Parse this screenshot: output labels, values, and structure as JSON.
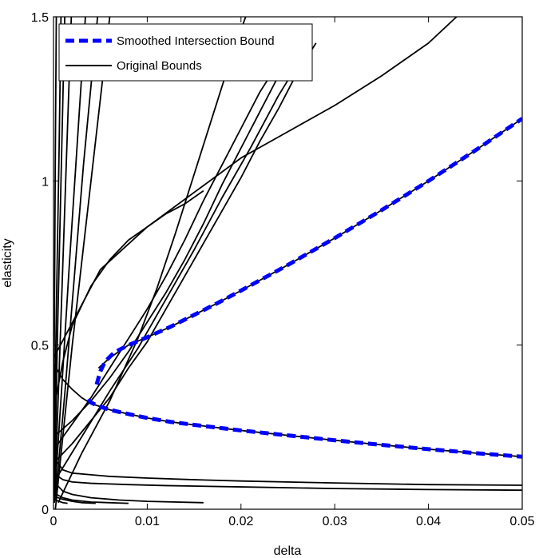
{
  "chart_data": {
    "type": "line",
    "xlabel": "delta",
    "ylabel": "elasticity",
    "xlim": [
      0,
      0.05
    ],
    "ylim": [
      0,
      1.5
    ],
    "x_ticks": [
      {
        "value": 0,
        "label": "0"
      },
      {
        "value": 0.01,
        "label": "0.01"
      },
      {
        "value": 0.02,
        "label": "0.02"
      },
      {
        "value": 0.03,
        "label": "0.03"
      },
      {
        "value": 0.04,
        "label": "0.04"
      },
      {
        "value": 0.05,
        "label": "0.05"
      }
    ],
    "y_ticks": [
      {
        "value": 0,
        "label": "0"
      },
      {
        "value": 0.5,
        "label": "0.5"
      },
      {
        "value": 1,
        "label": "1"
      },
      {
        "value": 1.5,
        "label": "1.5"
      }
    ],
    "grid": false,
    "legend_position": "top-left",
    "legend": [
      {
        "label": "Smoothed Intersection Bound",
        "style": "dashed",
        "color": "#0000ff"
      },
      {
        "label": "Original Bounds",
        "style": "solid",
        "color": "#000000"
      }
    ],
    "series": [
      {
        "name": "Smoothed Intersection Bound",
        "color": "#0000ff",
        "style": "dashed",
        "segments": [
          [
            [
              0.0046,
              0.38
            ],
            [
              0.005,
              0.42
            ],
            [
              0.0055,
              0.45
            ],
            [
              0.0065,
              0.478
            ],
            [
              0.008,
              0.5
            ],
            [
              0.01,
              0.524
            ],
            [
              0.0125,
              0.556
            ],
            [
              0.015,
              0.592
            ],
            [
              0.0175,
              0.628
            ],
            [
              0.02,
              0.666
            ],
            [
              0.025,
              0.744
            ],
            [
              0.03,
              0.826
            ],
            [
              0.035,
              0.911
            ],
            [
              0.04,
              1.0
            ],
            [
              0.045,
              1.093
            ],
            [
              0.05,
              1.19
            ]
          ],
          [
            [
              0.0037,
              0.335
            ],
            [
              0.004,
              0.325
            ],
            [
              0.0045,
              0.318
            ],
            [
              0.005,
              0.312
            ],
            [
              0.006,
              0.303
            ],
            [
              0.008,
              0.29
            ],
            [
              0.01,
              0.278
            ],
            [
              0.0125,
              0.266
            ],
            [
              0.015,
              0.257
            ],
            [
              0.02,
              0.24
            ],
            [
              0.025,
              0.225
            ],
            [
              0.03,
              0.21
            ],
            [
              0.035,
              0.196
            ],
            [
              0.04,
              0.183
            ],
            [
              0.045,
              0.171
            ],
            [
              0.05,
              0.16
            ]
          ]
        ]
      },
      {
        "name": "Original Bounds",
        "color": "#000000",
        "style": "solid",
        "segments": [
          [
            [
              0.0048,
              0.43
            ],
            [
              0.006,
              0.461
            ],
            [
              0.008,
              0.5
            ],
            [
              0.01,
              0.524
            ],
            [
              0.0125,
              0.556
            ],
            [
              0.015,
              0.592
            ],
            [
              0.0175,
              0.628
            ],
            [
              0.02,
              0.666
            ],
            [
              0.025,
              0.744
            ],
            [
              0.03,
              0.826
            ],
            [
              0.035,
              0.911
            ],
            [
              0.04,
              1.0
            ],
            [
              0.045,
              1.093
            ],
            [
              0.05,
              1.19
            ]
          ],
          [
            [
              0.0001,
              0.44
            ],
            [
              0.001,
              0.395
            ],
            [
              0.002,
              0.365
            ],
            [
              0.003,
              0.34
            ],
            [
              0.004,
              0.322
            ],
            [
              0.006,
              0.303
            ],
            [
              0.008,
              0.29
            ],
            [
              0.01,
              0.278
            ],
            [
              0.0125,
              0.266
            ],
            [
              0.015,
              0.257
            ],
            [
              0.02,
              0.24
            ],
            [
              0.025,
              0.225
            ],
            [
              0.03,
              0.21
            ],
            [
              0.035,
              0.196
            ],
            [
              0.04,
              0.183
            ],
            [
              0.045,
              0.171
            ],
            [
              0.05,
              0.16
            ]
          ],
          [
            [
              0.0,
              0.3
            ],
            [
              0.001,
              0.45
            ],
            [
              0.002,
              0.56
            ],
            [
              0.004,
              0.68
            ],
            [
              0.006,
              0.76
            ],
            [
              0.008,
              0.82
            ],
            [
              0.01,
              0.86
            ],
            [
              0.012,
              0.9
            ],
            [
              0.014,
              0.93
            ],
            [
              0.016,
              0.97
            ]
          ],
          [
            [
              0.0,
              0.46
            ],
            [
              0.005,
              0.73
            ],
            [
              0.01,
              0.86
            ],
            [
              0.015,
              0.965
            ],
            [
              0.02,
              1.07
            ],
            [
              0.025,
              1.15
            ],
            [
              0.03,
              1.23
            ],
            [
              0.035,
              1.32
            ],
            [
              0.04,
              1.42
            ],
            [
              0.043,
              1.5
            ]
          ],
          [
            [
              0.0,
              0.22
            ],
            [
              0.002,
              0.27
            ],
            [
              0.004,
              0.33
            ],
            [
              0.006,
              0.4
            ],
            [
              0.008,
              0.48
            ],
            [
              0.01,
              0.57
            ],
            [
              0.012,
              0.66
            ],
            [
              0.014,
              0.76
            ],
            [
              0.016,
              0.87
            ],
            [
              0.018,
              0.99
            ],
            [
              0.02,
              1.1
            ],
            [
              0.022,
              1.21
            ],
            [
              0.024,
              1.32
            ],
            [
              0.026,
              1.41
            ]
          ],
          [
            [
              0.0,
              0.18
            ],
            [
              0.002,
              0.26
            ],
            [
              0.004,
              0.34
            ],
            [
              0.006,
              0.43
            ],
            [
              0.008,
              0.52
            ],
            [
              0.01,
              0.61
            ],
            [
              0.012,
              0.71
            ],
            [
              0.014,
              0.82
            ],
            [
              0.016,
              0.94
            ],
            [
              0.018,
              1.05
            ],
            [
              0.02,
              1.16
            ],
            [
              0.022,
              1.27
            ],
            [
              0.024,
              1.36
            ]
          ],
          [
            [
              0.0,
              0.14
            ],
            [
              0.002,
              0.2
            ],
            [
              0.004,
              0.27
            ],
            [
              0.006,
              0.34
            ],
            [
              0.008,
              0.43
            ],
            [
              0.01,
              0.51
            ],
            [
              0.012,
              0.61
            ],
            [
              0.014,
              0.71
            ],
            [
              0.016,
              0.81
            ],
            [
              0.018,
              0.91
            ],
            [
              0.02,
              1.01
            ],
            [
              0.022,
              1.12
            ],
            [
              0.024,
              1.22
            ],
            [
              0.026,
              1.33
            ],
            [
              0.028,
              1.42
            ]
          ],
          [
            [
              0.0,
              0.08
            ],
            [
              0.003,
              0.22
            ],
            [
              0.006,
              0.36
            ],
            [
              0.009,
              0.49
            ],
            [
              0.012,
              0.64
            ],
            [
              0.015,
              0.79
            ],
            [
              0.018,
              0.95
            ],
            [
              0.021,
              1.1
            ],
            [
              0.024,
              1.26
            ],
            [
              0.027,
              1.4
            ]
          ],
          [
            [
              0.0005,
              0.02
            ],
            [
              0.003,
              0.17
            ],
            [
              0.006,
              0.33
            ],
            [
              0.009,
              0.52
            ],
            [
              0.011,
              0.67
            ],
            [
              0.013,
              0.84
            ],
            [
              0.015,
              1.02
            ],
            [
              0.017,
              1.2
            ],
            [
              0.019,
              1.38
            ],
            [
              0.0205,
              1.5
            ]
          ],
          [
            [
              0.0002,
              0.0
            ],
            [
              0.0011,
              0.25
            ],
            [
              0.002,
              0.5
            ],
            [
              0.003,
              0.75
            ],
            [
              0.004,
              1.0
            ],
            [
              0.005,
              1.25
            ],
            [
              0.006,
              1.5
            ]
          ],
          [
            [
              0.0002,
              0.03
            ],
            [
              0.0012,
              0.35
            ],
            [
              0.0022,
              0.7
            ],
            [
              0.0032,
              1.05
            ],
            [
              0.0042,
              1.35
            ],
            [
              0.0047,
              1.5
            ]
          ],
          [
            [
              0.0001,
              0.03
            ],
            [
              0.0009,
              0.38
            ],
            [
              0.0017,
              0.75
            ],
            [
              0.0025,
              1.1
            ],
            [
              0.0033,
              1.45
            ],
            [
              0.0034,
              1.5
            ]
          ],
          [
            [
              0.0001,
              0.02
            ],
            [
              0.0007,
              0.5
            ],
            [
              0.0013,
              1.0
            ],
            [
              0.0019,
              1.5
            ]
          ],
          [
            [
              0.0001,
              0.02
            ],
            [
              0.0004,
              0.5
            ],
            [
              0.0008,
              1.0
            ],
            [
              0.0012,
              1.5
            ]
          ],
          [
            [
              0.0,
              0.02
            ],
            [
              0.0003,
              0.6
            ],
            [
              0.0006,
              1.1
            ],
            [
              0.0008,
              1.5
            ]
          ],
          [
            [
              0.0,
              0.1
            ],
            [
              0.0001,
              0.6
            ],
            [
              0.0002,
              1.1
            ],
            [
              0.0003,
              1.5
            ]
          ],
          [
            [
              0.0,
              0.15
            ],
            [
              0.0005,
              0.14
            ],
            [
              0.001,
              0.12
            ],
            [
              0.002,
              0.11
            ],
            [
              0.004,
              0.105
            ],
            [
              0.006,
              0.1
            ],
            [
              0.01,
              0.095
            ],
            [
              0.015,
              0.09
            ],
            [
              0.02,
              0.086
            ],
            [
              0.03,
              0.08
            ],
            [
              0.04,
              0.075
            ],
            [
              0.05,
              0.073
            ]
          ],
          [
            [
              0.0,
              0.12
            ],
            [
              0.0005,
              0.1
            ],
            [
              0.001,
              0.09
            ],
            [
              0.002,
              0.083
            ],
            [
              0.004,
              0.079
            ],
            [
              0.008,
              0.075
            ],
            [
              0.012,
              0.072
            ],
            [
              0.02,
              0.068
            ],
            [
              0.03,
              0.063
            ],
            [
              0.04,
              0.06
            ],
            [
              0.05,
              0.058
            ]
          ],
          [
            [
              0.0,
              0.09
            ],
            [
              0.0005,
              0.07
            ],
            [
              0.001,
              0.055
            ],
            [
              0.002,
              0.045
            ],
            [
              0.004,
              0.035
            ],
            [
              0.007,
              0.028
            ],
            [
              0.01,
              0.024
            ],
            [
              0.016,
              0.02
            ]
          ],
          [
            [
              0.0,
              0.05
            ],
            [
              0.001,
              0.035
            ],
            [
              0.002,
              0.028
            ],
            [
              0.004,
              0.022
            ],
            [
              0.006,
              0.02
            ],
            [
              0.008,
              0.018
            ]
          ],
          [
            [
              0.0,
              0.04
            ],
            [
              0.001,
              0.03
            ],
            [
              0.002,
              0.024
            ],
            [
              0.003,
              0.02
            ],
            [
              0.0045,
              0.018
            ]
          ],
          [
            [
              0.0,
              0.03
            ],
            [
              0.0005,
              0.025
            ],
            [
              0.001,
              0.02
            ],
            [
              0.0015,
              0.018
            ]
          ]
        ]
      }
    ]
  }
}
